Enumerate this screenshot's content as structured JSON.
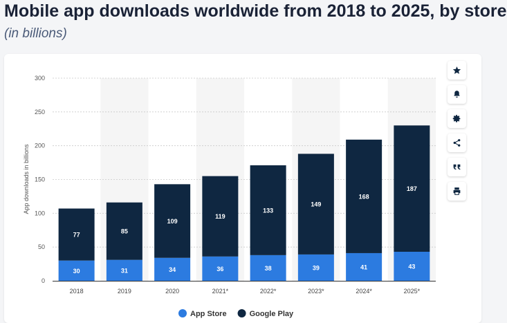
{
  "header": {
    "title": "Mobile app downloads worldwide from 2018 to 2025, by store",
    "subtitle": "(in billions)"
  },
  "toolbar": {
    "icons": [
      "star-icon",
      "bell-icon",
      "gear-icon",
      "share-icon",
      "quote-icon",
      "print-icon"
    ]
  },
  "chart_data": {
    "type": "bar",
    "stacked": true,
    "categories": [
      "2018",
      "2019",
      "2020",
      "2021*",
      "2022*",
      "2023*",
      "2024*",
      "2025*"
    ],
    "series": [
      {
        "name": "App Store",
        "values": [
          30,
          31,
          34,
          36,
          38,
          39,
          41,
          43
        ],
        "color": "#2c7be0"
      },
      {
        "name": "Google Play",
        "values": [
          77,
          85,
          109,
          119,
          133,
          149,
          168,
          187
        ],
        "color": "#0f2741"
      }
    ],
    "ylabel": "App downloads in billions",
    "ylim": [
      0,
      300
    ],
    "yticks": [
      "0",
      "50",
      "100",
      "150",
      "200",
      "250",
      "300"
    ],
    "grid": true,
    "legend": "bottom"
  }
}
